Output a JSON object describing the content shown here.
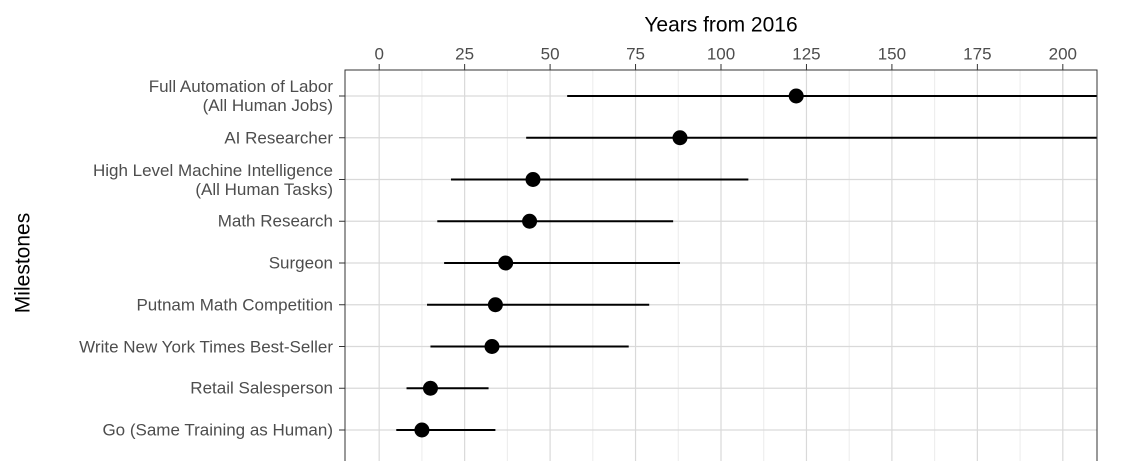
{
  "chart_data": {
    "type": "interval-dot",
    "x_label": "Years from 2016",
    "y_label": "Milestones",
    "categories": [
      "Full Automation of Labor\n(All Human Jobs)",
      "AI Researcher",
      "High Level Machine Intelligence\n(All Human Tasks)",
      "Math Research",
      "Surgeon",
      "Putnam Math Competition",
      "Write New York Times Best-Seller",
      "Retail Salesperson",
      "Go (Same Training as Human)"
    ],
    "values": [
      122,
      88,
      45,
      44,
      37,
      34,
      33,
      15,
      12.5
    ],
    "low": [
      55,
      43,
      21,
      17,
      19,
      14,
      15,
      8,
      5
    ],
    "high": [
      210,
      210,
      108,
      86,
      88,
      79,
      73,
      32,
      34
    ],
    "color": "#000000",
    "xlim": [
      -10,
      210
    ],
    "xticks": [
      0,
      25,
      50,
      75,
      100,
      125,
      150,
      175,
      200
    ],
    "grid": true
  }
}
